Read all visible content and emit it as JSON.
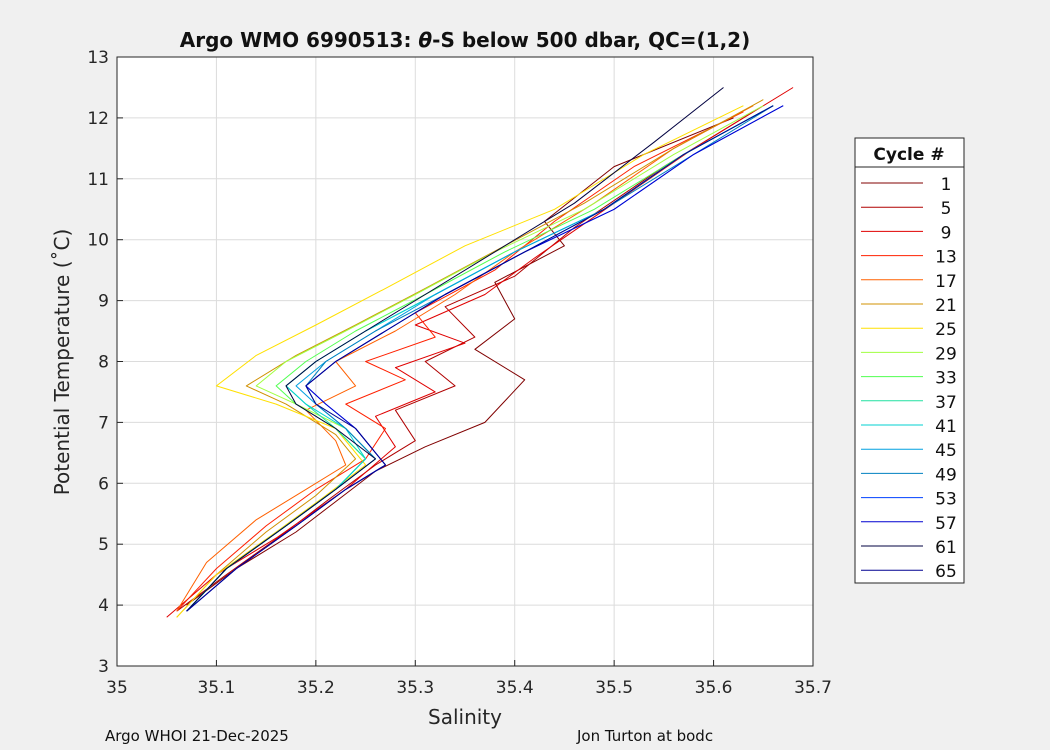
{
  "chart_data": {
    "type": "line",
    "title_prefix": "Argo WMO 6990513: ",
    "title_theta": "θ",
    "title_suffix": "-S below 500 dbar,  QC=(1,2)",
    "xlabel": "Salinity",
    "ylabel": "Potential Temperature (˚C)",
    "xlim": [
      35.0,
      35.7
    ],
    "ylim": [
      3,
      13
    ],
    "xticks": [
      35.0,
      35.1,
      35.2,
      35.3,
      35.4,
      35.5,
      35.6,
      35.7
    ],
    "xtick_labels": [
      "35",
      "35.1",
      "35.2",
      "35.3",
      "35.4",
      "35.5",
      "35.6",
      "35.7"
    ],
    "yticks": [
      3,
      4,
      5,
      6,
      7,
      8,
      9,
      10,
      11,
      12,
      13
    ],
    "ytick_labels": [
      "3",
      "4",
      "5",
      "6",
      "7",
      "8",
      "9",
      "10",
      "11",
      "12",
      "13"
    ],
    "grid": true,
    "legend": {
      "title": "Cycle #",
      "placement": "outside-right",
      "entries": [
        {
          "label": "1",
          "color": "#800000"
        },
        {
          "label": "5",
          "color": "#b00000"
        },
        {
          "label": "9",
          "color": "#e00000"
        },
        {
          "label": "13",
          "color": "#ff2000"
        },
        {
          "label": "17",
          "color": "#ff6000"
        },
        {
          "label": "21",
          "color": "#d09000"
        },
        {
          "label": "25",
          "color": "#ffe000"
        },
        {
          "label": "29",
          "color": "#a0ff40"
        },
        {
          "label": "33",
          "color": "#50ff50"
        },
        {
          "label": "37",
          "color": "#20e0a0"
        },
        {
          "label": "41",
          "color": "#00d0d0"
        },
        {
          "label": "45",
          "color": "#00a0e0"
        },
        {
          "label": "49",
          "color": "#0080c0"
        },
        {
          "label": "53",
          "color": "#0040ff"
        },
        {
          "label": "57",
          "color": "#0000d0"
        },
        {
          "label": "61",
          "color": "#000040"
        },
        {
          "label": "65",
          "color": "#000090"
        }
      ]
    },
    "series": [
      {
        "name": "1",
        "color": "#800000",
        "x": [
          35.07,
          35.12,
          35.18,
          35.22,
          35.26,
          35.31,
          35.37,
          35.41,
          35.36,
          35.4,
          35.38,
          35.45,
          35.43,
          35.5,
          35.62
        ],
        "y": [
          4.0,
          4.6,
          5.2,
          5.7,
          6.2,
          6.6,
          7.0,
          7.7,
          8.2,
          8.7,
          9.3,
          9.9,
          10.3,
          11.2,
          12.0
        ]
      },
      {
        "name": "5",
        "color": "#b00000",
        "x": [
          35.06,
          35.11,
          35.17,
          35.21,
          35.26,
          35.3,
          35.28,
          35.34,
          35.31,
          35.36,
          35.33,
          35.4,
          35.46,
          35.55,
          35.64
        ],
        "y": [
          3.9,
          4.5,
          5.2,
          5.7,
          6.3,
          6.7,
          7.2,
          7.6,
          8.0,
          8.4,
          8.9,
          9.4,
          10.2,
          11.2,
          12.1
        ]
      },
      {
        "name": "9",
        "color": "#e00000",
        "x": [
          35.05,
          35.1,
          35.16,
          35.23,
          35.28,
          35.26,
          35.32,
          35.28,
          35.35,
          35.3,
          35.37,
          35.42,
          35.5,
          35.58,
          35.68
        ],
        "y": [
          3.8,
          4.5,
          5.1,
          5.9,
          6.6,
          7.1,
          7.5,
          7.9,
          8.3,
          8.6,
          9.1,
          9.7,
          10.6,
          11.5,
          12.5
        ]
      },
      {
        "name": "13",
        "color": "#ff2000",
        "x": [
          35.06,
          35.1,
          35.15,
          35.2,
          35.25,
          35.27,
          35.23,
          35.29,
          35.25,
          35.32,
          35.3,
          35.38,
          35.44,
          35.52,
          35.63
        ],
        "y": [
          3.9,
          4.6,
          5.3,
          5.9,
          6.4,
          6.9,
          7.3,
          7.7,
          8.0,
          8.4,
          8.8,
          9.5,
          10.3,
          11.2,
          12.1
        ]
      },
      {
        "name": "17",
        "color": "#ff6000",
        "x": [
          35.06,
          35.09,
          35.14,
          35.19,
          35.23,
          35.22,
          35.19,
          35.24,
          35.22,
          35.28,
          35.34,
          35.4,
          35.48,
          35.56,
          35.64
        ],
        "y": [
          3.9,
          4.7,
          5.4,
          5.9,
          6.3,
          6.7,
          7.2,
          7.6,
          8.0,
          8.5,
          9.1,
          9.8,
          10.6,
          11.5,
          12.2
        ]
      },
      {
        "name": "21",
        "color": "#d09000",
        "x": [
          35.06,
          35.1,
          35.15,
          35.2,
          35.24,
          35.22,
          35.17,
          35.13,
          35.18,
          35.24,
          35.31,
          35.39,
          35.47,
          35.56,
          35.65
        ],
        "y": [
          3.8,
          4.5,
          5.2,
          5.8,
          6.4,
          6.8,
          7.3,
          7.6,
          8.1,
          8.6,
          9.2,
          9.9,
          10.6,
          11.5,
          12.3
        ]
      },
      {
        "name": "25",
        "color": "#ffe000",
        "x": [
          35.06,
          35.1,
          35.16,
          35.21,
          35.25,
          35.22,
          35.16,
          35.1,
          35.14,
          35.2,
          35.27,
          35.35,
          35.44,
          35.53,
          35.63
        ],
        "y": [
          3.8,
          4.5,
          5.2,
          5.8,
          6.3,
          6.9,
          7.3,
          7.6,
          8.1,
          8.6,
          9.2,
          9.9,
          10.5,
          11.4,
          12.2
        ]
      },
      {
        "name": "29",
        "color": "#a0ff40",
        "x": [
          35.07,
          35.11,
          35.17,
          35.22,
          35.26,
          35.23,
          35.18,
          35.14,
          35.17,
          35.23,
          35.3,
          35.38,
          35.47,
          35.56,
          35.65
        ],
        "y": [
          3.9,
          4.6,
          5.3,
          5.9,
          6.4,
          6.9,
          7.3,
          7.6,
          8.0,
          8.5,
          9.1,
          9.8,
          10.5,
          11.4,
          12.2
        ]
      },
      {
        "name": "33",
        "color": "#50ff50",
        "x": [
          35.07,
          35.11,
          35.17,
          35.22,
          35.25,
          35.22,
          35.18,
          35.16,
          35.19,
          35.24,
          35.31,
          35.39,
          35.48,
          35.57,
          35.66
        ],
        "y": [
          3.9,
          4.6,
          5.3,
          5.9,
          6.4,
          6.9,
          7.3,
          7.6,
          8.0,
          8.5,
          9.1,
          9.8,
          10.5,
          11.4,
          12.2
        ]
      },
      {
        "name": "37",
        "color": "#20e0a0",
        "x": [
          35.07,
          35.11,
          35.17,
          35.22,
          35.25,
          35.22,
          35.19,
          35.17,
          35.2,
          35.25,
          35.32,
          35.4,
          35.49,
          35.57,
          35.66
        ],
        "y": [
          3.9,
          4.6,
          5.3,
          5.9,
          6.4,
          6.9,
          7.3,
          7.6,
          8.0,
          8.5,
          9.1,
          9.8,
          10.5,
          11.4,
          12.2
        ]
      },
      {
        "name": "41",
        "color": "#00d0d0",
        "x": [
          35.07,
          35.11,
          35.17,
          35.22,
          35.25,
          35.23,
          35.19,
          35.17,
          35.2,
          35.25,
          35.32,
          35.4,
          35.49,
          35.57,
          35.66
        ],
        "y": [
          3.9,
          4.6,
          5.3,
          5.9,
          6.4,
          6.9,
          7.3,
          7.6,
          8.0,
          8.5,
          9.1,
          9.8,
          10.5,
          11.4,
          12.2
        ]
      },
      {
        "name": "45",
        "color": "#00a0e0",
        "x": [
          35.07,
          35.11,
          35.17,
          35.22,
          35.26,
          35.23,
          35.2,
          35.18,
          35.21,
          35.26,
          35.32,
          35.4,
          35.49,
          35.57,
          35.66
        ],
        "y": [
          3.9,
          4.6,
          5.3,
          5.9,
          6.4,
          6.9,
          7.3,
          7.6,
          8.0,
          8.5,
          9.1,
          9.8,
          10.5,
          11.4,
          12.2
        ]
      },
      {
        "name": "49",
        "color": "#0080c0",
        "x": [
          35.07,
          35.11,
          35.17,
          35.22,
          35.26,
          35.23,
          35.2,
          35.19,
          35.21,
          35.26,
          35.33,
          35.41,
          35.49,
          35.58,
          35.66
        ],
        "y": [
          3.9,
          4.6,
          5.3,
          5.9,
          6.4,
          6.9,
          7.3,
          7.6,
          8.0,
          8.5,
          9.1,
          9.8,
          10.5,
          11.4,
          12.2
        ]
      },
      {
        "name": "53",
        "color": "#0040ff",
        "x": [
          35.07,
          35.12,
          35.18,
          35.23,
          35.27,
          35.24,
          35.21,
          35.19,
          35.22,
          35.27,
          35.33,
          35.41,
          35.5,
          35.58,
          35.67
        ],
        "y": [
          3.9,
          4.6,
          5.3,
          5.9,
          6.3,
          6.9,
          7.3,
          7.6,
          8.0,
          8.5,
          9.1,
          9.8,
          10.5,
          11.4,
          12.2
        ]
      },
      {
        "name": "57",
        "color": "#0000d0",
        "x": [
          35.07,
          35.12,
          35.18,
          35.23,
          35.27,
          35.24,
          35.21,
          35.19,
          35.22,
          35.27,
          35.33,
          35.41,
          35.5,
          35.58,
          35.67
        ],
        "y": [
          3.9,
          4.6,
          5.3,
          5.9,
          6.3,
          6.9,
          7.3,
          7.6,
          8.0,
          8.5,
          9.1,
          9.8,
          10.5,
          11.4,
          12.2
        ]
      },
      {
        "name": "61",
        "color": "#000040",
        "x": [
          35.07,
          35.11,
          35.17,
          35.22,
          35.26,
          35.22,
          35.18,
          35.17,
          35.2,
          35.25,
          35.31,
          35.38,
          35.46,
          35.54,
          35.61
        ],
        "y": [
          3.9,
          4.6,
          5.3,
          5.9,
          6.4,
          6.9,
          7.3,
          7.6,
          8.0,
          8.5,
          9.1,
          9.8,
          10.6,
          11.6,
          12.5
        ]
      },
      {
        "name": "65",
        "color": "#000090",
        "x": [
          35.07,
          35.12,
          35.18,
          35.23,
          35.27,
          35.24,
          35.2,
          35.19,
          35.22,
          35.27,
          35.33,
          35.41,
          35.49,
          35.57,
          35.66
        ],
        "y": [
          3.9,
          4.6,
          5.3,
          5.9,
          6.3,
          6.9,
          7.3,
          7.6,
          8.0,
          8.5,
          9.1,
          9.8,
          10.5,
          11.4,
          12.2
        ]
      }
    ]
  },
  "footer": {
    "left": "Argo WHOI 21-Dec-2025",
    "right": "Jon Turton at bodc"
  }
}
